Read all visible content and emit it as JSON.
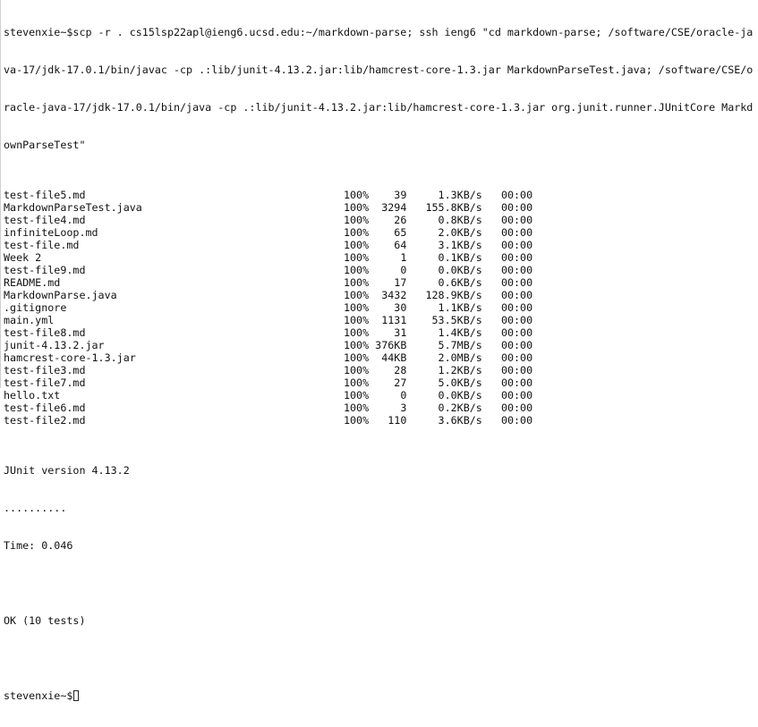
{
  "terminal": {
    "command_lines": [
      "stevenxie~$scp -r . cs15lsp22apl@ieng6.ucsd.edu:~/markdown-parse; ssh ieng6 \"cd markdown-parse; /software/CSE/oracle-ja",
      "va-17/jdk-17.0.1/bin/javac -cp .:lib/junit-4.13.2.jar:lib/hamcrest-core-1.3.jar MarkdownParseTest.java; /software/CSE/o",
      "racle-java-17/jdk-17.0.1/bin/java -cp .:lib/junit-4.13.2.jar:lib/hamcrest-core-1.3.jar org.junit.runner.JUnitCore Markd",
      "ownParseTest\""
    ],
    "transfers": [
      {
        "file": "test-file5.md",
        "pct": "100%",
        "size": "39",
        "rate": "1.3KB/s",
        "time": "00:00"
      },
      {
        "file": "MarkdownParseTest.java",
        "pct": "100%",
        "size": "3294",
        "rate": "155.8KB/s",
        "time": "00:00"
      },
      {
        "file": "test-file4.md",
        "pct": "100%",
        "size": "26",
        "rate": "0.8KB/s",
        "time": "00:00"
      },
      {
        "file": "infiniteLoop.md",
        "pct": "100%",
        "size": "65",
        "rate": "2.0KB/s",
        "time": "00:00"
      },
      {
        "file": "test-file.md",
        "pct": "100%",
        "size": "64",
        "rate": "3.1KB/s",
        "time": "00:00"
      },
      {
        "file": "Week 2",
        "pct": "100%",
        "size": "1",
        "rate": "0.1KB/s",
        "time": "00:00"
      },
      {
        "file": "test-file9.md",
        "pct": "100%",
        "size": "0",
        "rate": "0.0KB/s",
        "time": "00:00"
      },
      {
        "file": "README.md",
        "pct": "100%",
        "size": "17",
        "rate": "0.6KB/s",
        "time": "00:00"
      },
      {
        "file": "MarkdownParse.java",
        "pct": "100%",
        "size": "3432",
        "rate": "128.9KB/s",
        "time": "00:00"
      },
      {
        "file": ".gitignore",
        "pct": "100%",
        "size": "30",
        "rate": "1.1KB/s",
        "time": "00:00"
      },
      {
        "file": "main.yml",
        "pct": "100%",
        "size": "1131",
        "rate": "53.5KB/s",
        "time": "00:00"
      },
      {
        "file": "test-file8.md",
        "pct": "100%",
        "size": "31",
        "rate": "1.4KB/s",
        "time": "00:00"
      },
      {
        "file": "junit-4.13.2.jar",
        "pct": "100%",
        "size": "376KB",
        "rate": "5.7MB/s",
        "time": "00:00"
      },
      {
        "file": "hamcrest-core-1.3.jar",
        "pct": "100%",
        "size": "44KB",
        "rate": "2.0MB/s",
        "time": "00:00"
      },
      {
        "file": "test-file3.md",
        "pct": "100%",
        "size": "28",
        "rate": "1.2KB/s",
        "time": "00:00"
      },
      {
        "file": "test-file7.md",
        "pct": "100%",
        "size": "27",
        "rate": "5.0KB/s",
        "time": "00:00"
      },
      {
        "file": "hello.txt",
        "pct": "100%",
        "size": "0",
        "rate": "0.0KB/s",
        "time": "00:00"
      },
      {
        "file": "test-file6.md",
        "pct": "100%",
        "size": "3",
        "rate": "0.2KB/s",
        "time": "00:00"
      },
      {
        "file": "test-file2.md",
        "pct": "100%",
        "size": "110",
        "rate": "3.6KB/s",
        "time": "00:00"
      }
    ],
    "junit_version": "JUnit version 4.13.2",
    "dots": "..........",
    "time": "Time: 0.046",
    "blank1": "",
    "ok": "OK (10 tests)",
    "blank2": "",
    "prompt": "stevenxie~$"
  }
}
